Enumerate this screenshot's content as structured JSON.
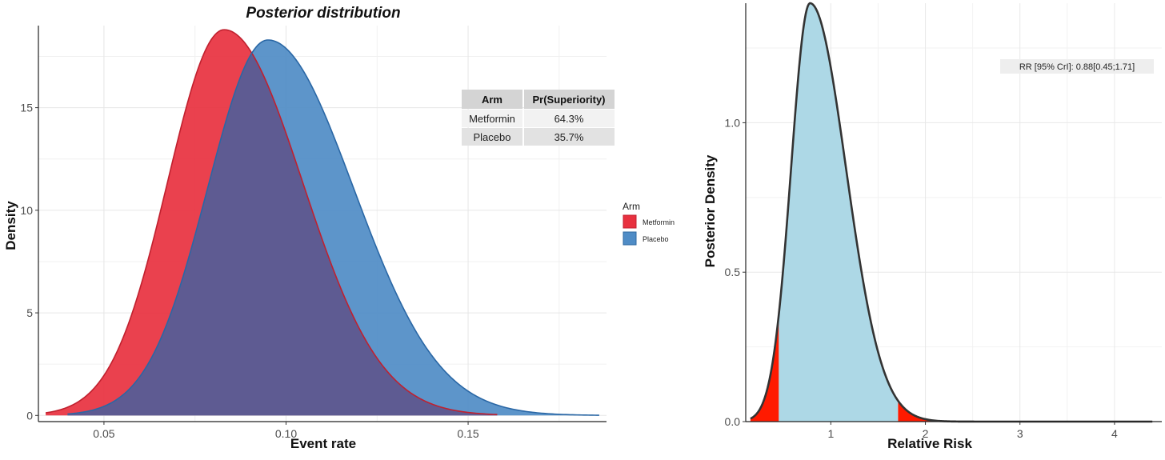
{
  "chart_data": [
    {
      "type": "area",
      "title": "Posterior distribution",
      "xlabel": "Event rate",
      "ylabel": "Density",
      "xlim": [
        0.032,
        0.188
      ],
      "ylim": [
        -0.3,
        19
      ],
      "x_ticks": [
        0.05,
        0.1,
        0.15
      ],
      "x_tick_labels": [
        "0.05",
        "0.10",
        "0.15"
      ],
      "y_ticks": [
        0,
        5,
        10,
        15
      ],
      "y_tick_labels": [
        "0",
        "5",
        "10",
        "15"
      ],
      "grid": true,
      "legend": {
        "title": "Arm",
        "placement": "right",
        "entries": [
          {
            "label": "Metformin",
            "color": "#e8313f"
          },
          {
            "label": "Placebo",
            "color": "#4f8cc6"
          }
        ]
      },
      "series": [
        {
          "name": "Metformin",
          "color": "#e8313f",
          "peak_x": 0.083,
          "peak_y": 18.8,
          "sd_left": 0.0155,
          "sd_right": 0.0215,
          "x_range": [
            0.034,
            0.158
          ]
        },
        {
          "name": "Placebo",
          "color": "#4f8cc6",
          "peak_x": 0.095,
          "peak_y": 18.3,
          "sd_left": 0.0165,
          "sd_right": 0.0235,
          "x_range": [
            0.04,
            0.186
          ]
        }
      ],
      "overlap_color": "#5e5b92",
      "table": {
        "headers": [
          "Arm",
          "Pr(Superiority)"
        ],
        "rows": [
          [
            "Metformin",
            "64.3%"
          ],
          [
            "Placebo",
            "35.7%"
          ]
        ]
      }
    },
    {
      "type": "area",
      "title": "",
      "xlabel": "Relative Risk",
      "ylabel": "Posterior Density",
      "xlim": [
        0.1,
        4.5
      ],
      "ylim": [
        0,
        1.4
      ],
      "x_ticks": [
        1,
        2,
        3,
        4
      ],
      "x_tick_labels": [
        "1",
        "2",
        "3",
        "4"
      ],
      "y_ticks": [
        0.0,
        0.5,
        1.0
      ],
      "y_tick_labels": [
        "0.0",
        "0.5",
        "1.0"
      ],
      "grid": true,
      "annotation": "RR [95% CrI]: 0.88[0.45;1.71]",
      "density": {
        "peak_x": 0.78,
        "peak_y": 1.4,
        "sd_left": 0.2,
        "sd_right": 0.38,
        "x_range": [
          0.15,
          4.4
        ]
      },
      "credible_interval": [
        0.45,
        1.71
      ],
      "inner_color": "#add8e6",
      "tail_color": "#ff1a00",
      "line_color": "#333333"
    }
  ]
}
